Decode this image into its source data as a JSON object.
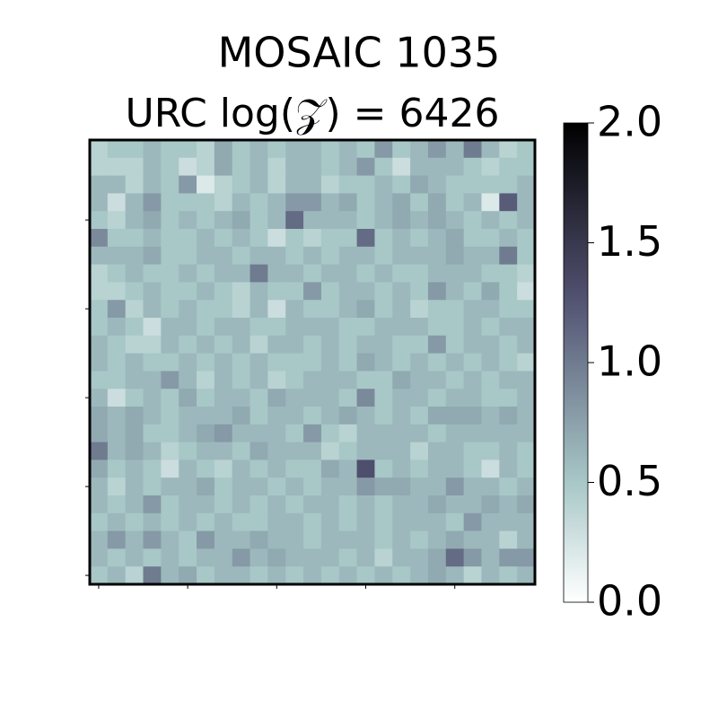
{
  "chart_data": {
    "type": "heatmap",
    "title": "MOSAIC 1035",
    "subtitle": "URC log(𝒵) = 6426",
    "colormap": "bone_r",
    "clim": [
      0,
      2
    ],
    "cticks": [
      {
        "value": 0,
        "label": "0.0"
      },
      0.5,
      {
        "value": 1,
        "label": "1.0"
      },
      1.5,
      {
        "value": 2,
        "label": "2.0"
      }
    ],
    "xticks": [
      0,
      5,
      10,
      15,
      20
    ],
    "yticks": [
      0,
      5,
      10,
      15,
      20
    ],
    "values": [
      [
        0.4,
        0.5,
        0.5,
        0.6,
        0.5,
        0.5,
        0.4,
        0.7,
        0.5,
        0.6,
        0.5,
        0.6,
        0.6,
        0.5,
        0.6,
        0.5,
        0.8,
        0.5,
        0.6,
        0.8,
        0.6,
        1.0,
        0.6,
        0.4,
        0.5
      ],
      [
        0.4,
        0.4,
        0.4,
        0.6,
        0.5,
        0.3,
        0.4,
        0.7,
        0.5,
        0.6,
        0.4,
        0.6,
        0.6,
        0.5,
        0.6,
        0.8,
        0.5,
        0.3,
        0.6,
        0.6,
        0.6,
        0.5,
        0.4,
        0.5,
        0.5
      ],
      [
        0.6,
        0.6,
        0.4,
        0.6,
        0.5,
        0.8,
        0.2,
        0.4,
        0.5,
        0.6,
        0.4,
        0.6,
        0.6,
        0.4,
        0.5,
        0.5,
        0.6,
        0.5,
        0.7,
        0.6,
        0.5,
        0.5,
        0.5,
        0.5,
        0.6
      ],
      [
        0.6,
        0.3,
        0.6,
        0.8,
        0.5,
        0.5,
        0.5,
        0.4,
        0.6,
        0.5,
        0.6,
        0.8,
        0.8,
        0.6,
        0.7,
        0.5,
        0.6,
        0.7,
        0.5,
        0.7,
        0.5,
        0.6,
        0.2,
        1.2,
        0.6
      ],
      [
        0.5,
        0.4,
        0.6,
        0.7,
        0.5,
        0.6,
        0.5,
        0.6,
        0.7,
        0.5,
        0.6,
        1.1,
        0.6,
        0.6,
        0.6,
        0.5,
        0.6,
        0.7,
        0.6,
        0.7,
        0.6,
        0.5,
        0.6,
        0.5,
        0.6
      ],
      [
        0.9,
        0.5,
        0.5,
        0.6,
        0.5,
        0.5,
        0.6,
        0.5,
        0.6,
        0.5,
        0.3,
        0.5,
        0.4,
        0.5,
        0.5,
        1.1,
        0.5,
        0.6,
        0.5,
        0.6,
        0.7,
        0.5,
        0.5,
        0.6,
        0.5
      ],
      [
        0.6,
        0.6,
        0.6,
        0.7,
        0.5,
        0.5,
        0.6,
        0.6,
        0.5,
        0.6,
        0.6,
        0.5,
        0.6,
        0.5,
        0.6,
        0.6,
        0.5,
        0.6,
        0.6,
        0.6,
        0.7,
        0.6,
        0.6,
        1.0,
        0.5
      ],
      [
        0.4,
        0.5,
        0.6,
        0.5,
        0.5,
        0.6,
        0.5,
        0.6,
        0.6,
        1.0,
        0.6,
        0.6,
        0.5,
        0.6,
        0.6,
        0.5,
        0.6,
        0.5,
        0.5,
        0.6,
        0.6,
        0.6,
        0.5,
        0.5,
        0.4
      ],
      [
        0.4,
        0.4,
        0.5,
        0.6,
        0.5,
        0.5,
        0.6,
        0.5,
        0.4,
        0.6,
        0.5,
        0.5,
        0.8,
        0.5,
        0.6,
        0.6,
        0.5,
        0.6,
        0.5,
        0.8,
        0.6,
        0.5,
        0.7,
        0.5,
        0.3
      ],
      [
        0.5,
        0.8,
        0.4,
        0.6,
        0.5,
        0.6,
        0.5,
        0.5,
        0.4,
        0.6,
        0.3,
        0.6,
        0.5,
        0.5,
        0.6,
        0.7,
        0.5,
        0.6,
        0.4,
        0.5,
        0.5,
        0.6,
        0.6,
        0.5,
        0.5
      ],
      [
        0.5,
        0.6,
        0.5,
        0.3,
        0.6,
        0.6,
        0.5,
        0.6,
        0.6,
        0.5,
        0.5,
        0.6,
        0.6,
        0.6,
        0.5,
        0.5,
        0.6,
        0.6,
        0.6,
        0.5,
        0.5,
        0.6,
        0.5,
        0.6,
        0.6
      ],
      [
        0.6,
        0.5,
        0.4,
        0.4,
        0.6,
        0.5,
        0.6,
        0.5,
        0.6,
        0.4,
        0.6,
        0.6,
        0.5,
        0.6,
        0.5,
        0.6,
        0.6,
        0.5,
        0.5,
        0.8,
        0.5,
        0.6,
        0.6,
        0.5,
        0.6
      ],
      [
        0.6,
        0.5,
        0.6,
        0.5,
        0.5,
        0.6,
        0.5,
        0.6,
        0.5,
        0.6,
        0.5,
        0.5,
        0.5,
        0.6,
        0.5,
        0.7,
        0.6,
        0.5,
        0.6,
        0.5,
        0.6,
        0.5,
        0.6,
        0.5,
        0.4
      ],
      [
        0.5,
        0.5,
        0.6,
        0.6,
        0.8,
        0.6,
        0.4,
        0.6,
        0.5,
        0.6,
        0.4,
        0.5,
        0.6,
        0.6,
        0.6,
        0.5,
        0.5,
        0.7,
        0.6,
        0.6,
        0.5,
        0.6,
        0.5,
        0.6,
        0.6
      ],
      [
        0.6,
        0.3,
        0.5,
        0.6,
        0.5,
        0.7,
        0.5,
        0.6,
        0.6,
        0.5,
        0.7,
        0.6,
        0.6,
        0.6,
        0.5,
        0.9,
        0.5,
        0.6,
        0.6,
        0.5,
        0.6,
        0.6,
        0.5,
        0.5,
        0.6
      ],
      [
        0.7,
        0.6,
        0.7,
        0.6,
        0.5,
        0.6,
        0.6,
        0.6,
        0.7,
        0.5,
        0.6,
        0.6,
        0.5,
        0.6,
        0.7,
        0.6,
        0.5,
        0.6,
        0.5,
        0.7,
        0.7,
        0.7,
        0.6,
        0.7,
        0.6
      ],
      [
        0.7,
        0.6,
        0.7,
        0.5,
        0.5,
        0.6,
        0.7,
        0.8,
        0.6,
        0.6,
        0.6,
        0.5,
        0.8,
        0.5,
        0.4,
        0.6,
        0.6,
        0.6,
        0.6,
        0.5,
        0.6,
        0.6,
        0.6,
        0.6,
        0.6
      ],
      [
        1.0,
        0.6,
        0.7,
        0.6,
        0.4,
        0.5,
        0.6,
        0.6,
        0.5,
        0.7,
        0.6,
        0.6,
        0.6,
        0.4,
        0.5,
        0.6,
        0.6,
        0.6,
        0.4,
        0.6,
        0.6,
        0.5,
        0.5,
        0.6,
        0.5
      ],
      [
        0.7,
        0.5,
        0.6,
        0.5,
        0.3,
        0.6,
        0.5,
        0.4,
        0.6,
        0.5,
        0.6,
        0.5,
        0.5,
        0.7,
        0.6,
        1.3,
        0.5,
        0.6,
        0.5,
        0.6,
        0.6,
        0.5,
        0.3,
        0.6,
        0.5
      ],
      [
        0.6,
        0.4,
        0.6,
        0.5,
        0.6,
        0.6,
        0.7,
        0.5,
        0.6,
        0.6,
        0.5,
        0.6,
        0.5,
        0.6,
        0.6,
        0.8,
        0.7,
        0.7,
        0.6,
        0.6,
        0.8,
        0.6,
        0.6,
        0.5,
        0.6
      ],
      [
        0.6,
        0.5,
        0.6,
        0.8,
        0.5,
        0.6,
        0.6,
        0.5,
        0.6,
        0.5,
        0.6,
        0.5,
        0.6,
        0.6,
        0.5,
        0.6,
        0.5,
        0.6,
        0.6,
        0.7,
        0.6,
        0.6,
        0.7,
        0.6,
        0.7
      ],
      [
        0.5,
        0.6,
        0.5,
        0.6,
        0.5,
        0.6,
        0.5,
        0.6,
        0.5,
        0.5,
        0.6,
        0.6,
        0.5,
        0.6,
        0.5,
        0.6,
        0.5,
        0.6,
        0.6,
        0.6,
        0.5,
        0.8,
        0.6,
        0.6,
        0.6
      ],
      [
        0.6,
        0.8,
        0.6,
        0.8,
        0.6,
        0.5,
        0.8,
        0.6,
        0.6,
        0.7,
        0.6,
        0.6,
        0.5,
        0.6,
        0.6,
        0.6,
        0.5,
        0.6,
        0.5,
        0.6,
        0.7,
        0.6,
        0.6,
        0.4,
        0.6
      ],
      [
        0.6,
        0.5,
        0.6,
        0.5,
        0.6,
        0.5,
        0.6,
        0.6,
        0.8,
        0.6,
        0.7,
        0.6,
        0.6,
        0.6,
        0.5,
        0.6,
        0.4,
        0.6,
        0.6,
        0.7,
        1.1,
        0.8,
        0.6,
        0.8,
        0.8
      ],
      [
        0.5,
        0.6,
        0.4,
        1.0,
        0.6,
        0.7,
        0.5,
        0.6,
        0.6,
        0.5,
        0.6,
        0.5,
        0.6,
        0.5,
        0.6,
        0.5,
        0.6,
        0.5,
        0.6,
        0.7,
        0.6,
        0.4,
        0.6,
        0.5,
        0.6
      ]
    ]
  }
}
